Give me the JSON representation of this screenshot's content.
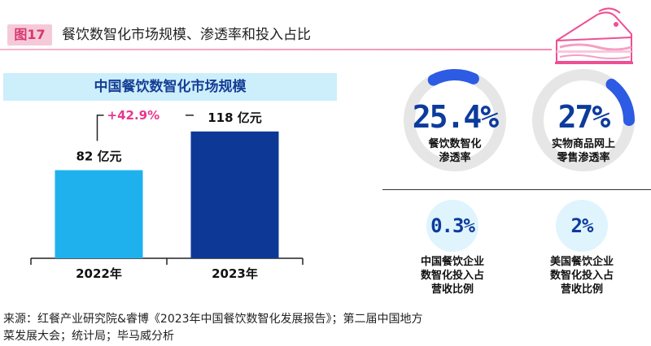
{
  "figure": {
    "tag": "图17",
    "title": "餐饮数智化市场规模、渗透率和投入占比"
  },
  "chart_data": {
    "type": "bar",
    "title": "中国餐饮数智化市场规模",
    "categories": [
      "2022年",
      "2023年"
    ],
    "values": [
      82,
      118
    ],
    "data_labels": [
      "82 亿元",
      "118 亿元"
    ],
    "growth_label": "+42.9%",
    "colors": [
      "#1fb1ee",
      "#0d3896"
    ],
    "growth_color": "#e8368f",
    "ylim": [
      0,
      130
    ]
  },
  "stats": [
    {
      "value": "25.4%",
      "label_lines": [
        "餐饮数智化",
        "渗透率"
      ],
      "arc_color": "#2d5be3"
    },
    {
      "value": "27%",
      "label_lines": [
        "实物商品网上",
        "零售渗透率"
      ],
      "arc_color": "#2d5be3"
    },
    {
      "value": "0.3%",
      "label_lines": [
        "中国餐饮企业",
        "数智化投入占",
        "营收比例"
      ]
    },
    {
      "value": "2%",
      "label_lines": [
        "美国餐饮企业",
        "数智化投入占",
        "营收比例"
      ]
    }
  ],
  "source_lines": [
    "来源：红餐产业研究院&睿博《2023年中国餐饮数智化发展报告》；第二届中国地方",
    "菜发展大会；统计局；毕马威分析"
  ]
}
